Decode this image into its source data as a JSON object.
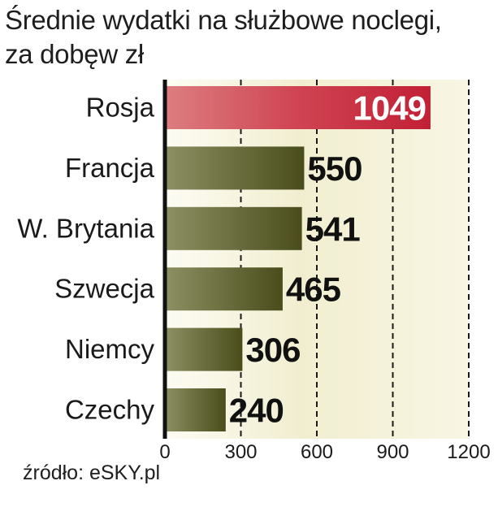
{
  "title_line1": "Średnie wydatki na służbowe noclegi,",
  "title_line2": "za dobęw zł",
  "source": "źródło: eSKY.pl",
  "colors": {
    "highlight": "#c8283a",
    "bar": "#5e6128",
    "grid": "#1a1a1a",
    "background_tint": "#ece8c6"
  },
  "chart_data": {
    "type": "bar",
    "orientation": "horizontal",
    "categories": [
      "Rosja",
      "Francja",
      "W. Brytania",
      "Szwecja",
      "Niemcy",
      "Czechy"
    ],
    "values": [
      1049,
      550,
      541,
      465,
      306,
      240
    ],
    "value_labels": [
      "1049",
      "550",
      "541",
      "465",
      "306",
      "240"
    ],
    "highlight_index": 0,
    "xlim": [
      0,
      1200
    ],
    "xticks": [
      0,
      300,
      600,
      900,
      1200
    ],
    "xtick_labels": [
      "0",
      "300",
      "600",
      "900",
      "1200"
    ],
    "grid": "dashed vertical"
  }
}
